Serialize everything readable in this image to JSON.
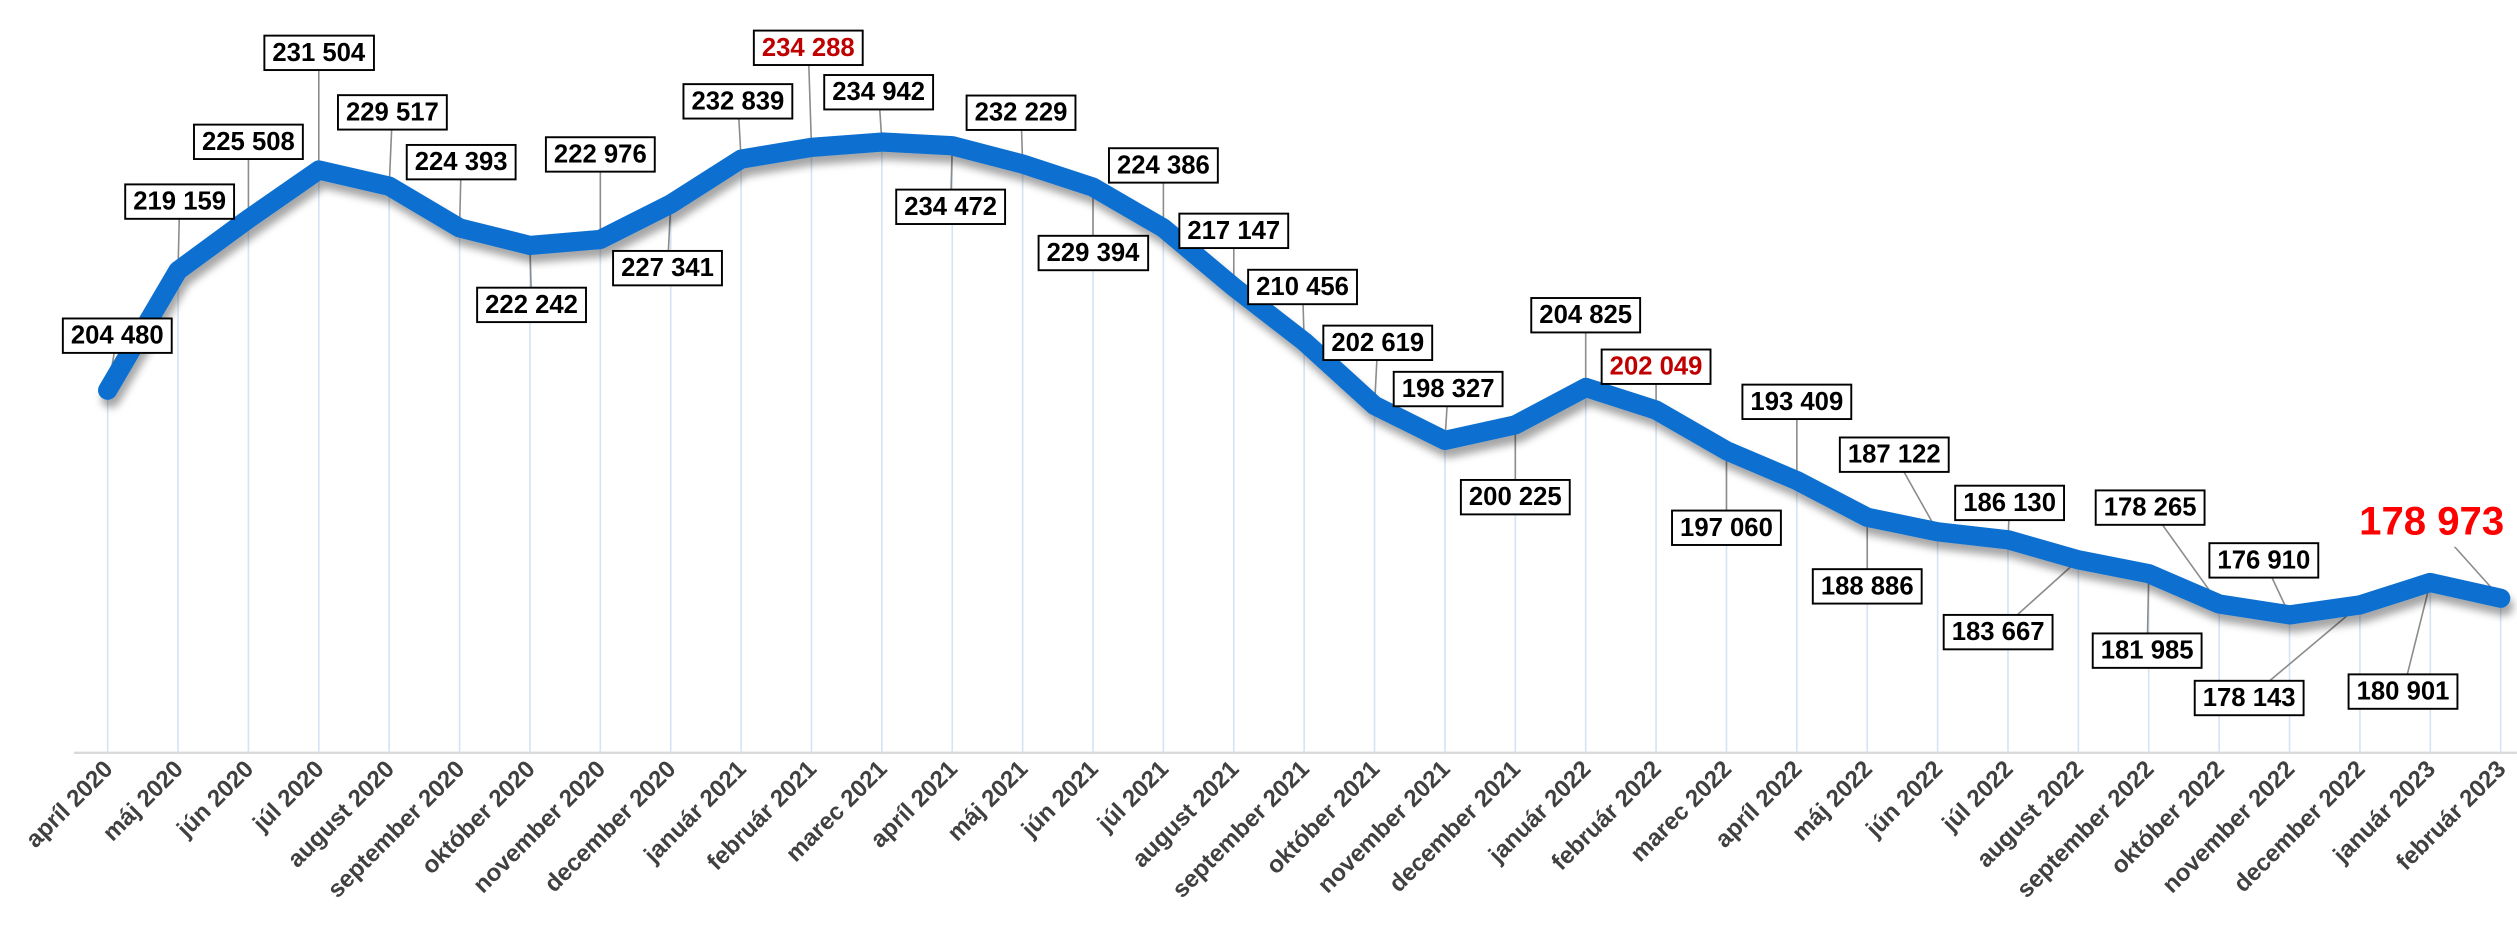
{
  "chart_data": {
    "type": "line",
    "categories": [
      "apríl 2020",
      "máj 2020",
      "jún 2020",
      "júl 2020",
      "august 2020",
      "september 2020",
      "október 2020",
      "november 2020",
      "december 2020",
      "január 2021",
      "február 2021",
      "marec 2021",
      "apríl 2021",
      "máj 2021",
      "jún 2021",
      "júl 2021",
      "august 2021",
      "september 2021",
      "október 2021",
      "november 2021",
      "december 2021",
      "január 2022",
      "február 2022",
      "marec 2022",
      "apríl 2022",
      "máj 2022",
      "jún 2022",
      "júl 2022",
      "august 2022",
      "september 2022",
      "október 2022",
      "november 2022",
      "december 2022",
      "január 2023",
      "február 2023"
    ],
    "values": [
      204480,
      219159,
      225508,
      231504,
      229517,
      224393,
      222242,
      222976,
      227341,
      232839,
      234288,
      234942,
      234472,
      232229,
      229394,
      224386,
      217147,
      210456,
      202619,
      198327,
      200225,
      204825,
      202049,
      197060,
      193409,
      188886,
      187122,
      186130,
      183667,
      181985,
      178265,
      176910,
      178143,
      180901,
      178973
    ],
    "value_labels": [
      "204 480",
      "219 159",
      "225 508",
      "231 504",
      "229 517",
      "224 393",
      "222 242",
      "222 976",
      "227 341",
      "232 839",
      "234 288",
      "234 942",
      "234 472",
      "232 229",
      "229 394",
      "224 386",
      "217 147",
      "210 456",
      "202 619",
      "198 327",
      "200 225",
      "204 825",
      "202 049",
      "197 060",
      "193 409",
      "188 886",
      "187 122",
      "186 130",
      "183 667",
      "181 985",
      "178 265",
      "176 910",
      "178 143",
      "180 901",
      "178 973"
    ],
    "value_label_colors": [
      "#000000",
      "#000000",
      "#000000",
      "#000000",
      "#000000",
      "#000000",
      "#000000",
      "#000000",
      "#000000",
      "#000000",
      "#c00000",
      "#000000",
      "#000000",
      "#000000",
      "#000000",
      "#000000",
      "#000000",
      "#000000",
      "#000000",
      "#000000",
      "#000000",
      "#000000",
      "#c00000",
      "#000000",
      "#000000",
      "#000000",
      "#000000",
      "#000000",
      "#000000",
      "#000000",
      "#000000",
      "#000000",
      "#000000",
      "#000000",
      "#ff0000"
    ],
    "color": "#0a6fd0",
    "ylim": [
      160000,
      250000
    ]
  }
}
